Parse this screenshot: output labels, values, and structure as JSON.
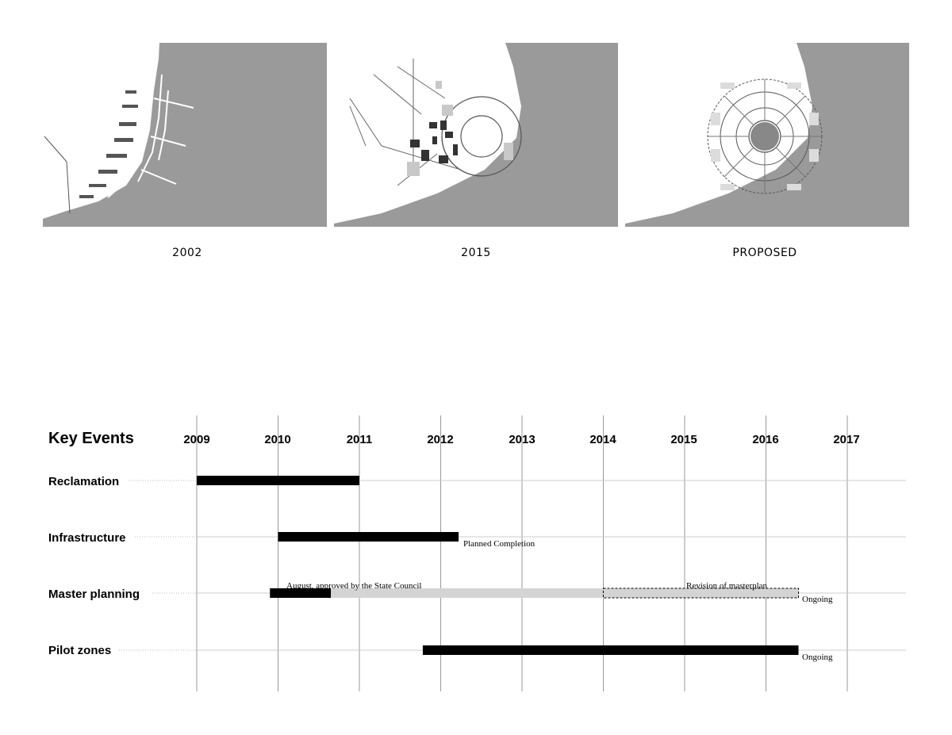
{
  "maps": {
    "panels": [
      {
        "caption": "2002"
      },
      {
        "caption": "2015"
      },
      {
        "caption": "PROPOSED"
      }
    ],
    "colors": {
      "water": "#9a9a9a",
      "land": "#ffffff",
      "ink": "#444444"
    }
  },
  "timeline": {
    "title": "Key Events",
    "years": [
      "2009",
      "2010",
      "2011",
      "2012",
      "2013",
      "2014",
      "2015",
      "2016",
      "2017"
    ],
    "rows": [
      {
        "label": "Reclamation"
      },
      {
        "label": "Infrastructure"
      },
      {
        "label": "Master planning"
      },
      {
        "label": "Pilot zones"
      }
    ],
    "notes": {
      "planned_completion": "Planned Completion",
      "approved": "August, approved by  the State Council",
      "revision": "Revision of masterplan",
      "ongoing_master": "Ongoing",
      "ongoing_pilot": "Ongoing"
    },
    "colors": {
      "bar": "#000000",
      "planned": "#d4d4d4",
      "grid": "#999999",
      "rule": "#cccccc"
    }
  },
  "chart_data": {
    "type": "gantt",
    "title": "Key Events",
    "x_range": [
      2009,
      2017
    ],
    "tasks": [
      {
        "name": "Reclamation",
        "start": 2009.0,
        "end": 2011.0,
        "style": "solid"
      },
      {
        "name": "Infrastructure",
        "start": 2010.0,
        "end": 2012.22,
        "style": "solid",
        "note": "Planned Completion"
      },
      {
        "name": "Master planning",
        "start": 2009.9,
        "end": 2010.65,
        "style": "solid",
        "note": "August, approved by  the State Council"
      },
      {
        "name": "Master planning",
        "start": 2010.65,
        "end": 2014.0,
        "style": "gray"
      },
      {
        "name": "Master planning",
        "start": 2014.0,
        "end": 2016.4,
        "style": "dashed",
        "note": "Revision of masterplan",
        "status": "Ongoing"
      },
      {
        "name": "Pilot zones",
        "start": 2011.78,
        "end": 2016.4,
        "style": "solid",
        "status": "Ongoing"
      }
    ]
  }
}
